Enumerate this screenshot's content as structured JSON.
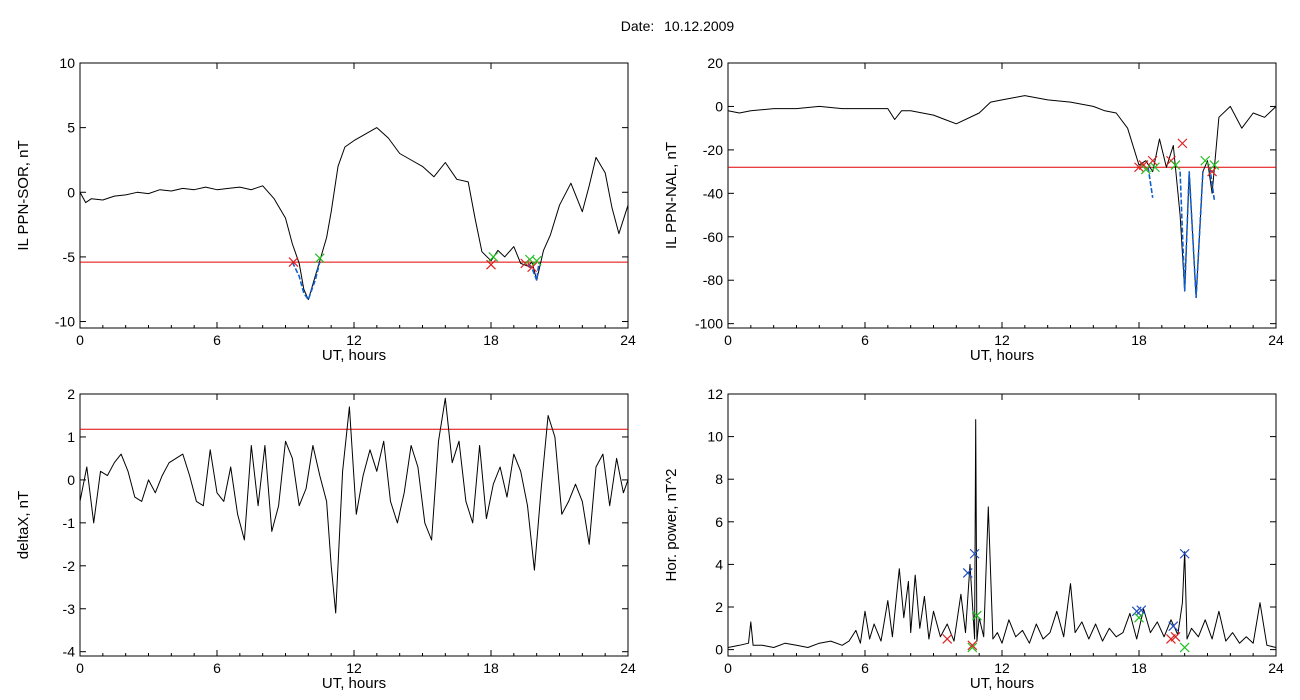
{
  "header": {
    "date_label": "Date:",
    "date_value": "10.12.2009"
  },
  "chart_data": [
    {
      "id": "sor",
      "type": "line",
      "ylabel": "IL PPN-SOR, nT",
      "xlabel": "UT, hours",
      "xlim": [
        0,
        24
      ],
      "ylim": [
        -10.5,
        10
      ],
      "xticks": [
        0,
        6,
        12,
        18,
        24
      ],
      "yticks": [
        10,
        5,
        0,
        -5,
        -10
      ],
      "threshold": -5.4,
      "colors": {
        "line": "#000000",
        "threshold": "#e00000",
        "highlight": "#1060d0",
        "start_marker": "#e02020",
        "end_marker": "#20c020"
      },
      "series": [
        {
          "x": [
            0,
            0.25,
            0.5,
            1,
            1.5,
            2,
            2.5,
            3,
            3.5,
            4,
            4.5,
            5,
            5.5,
            6,
            6.5,
            7,
            7.5,
            8,
            8.5,
            9,
            9.3,
            9.6,
            9.8,
            10,
            10.3,
            10.5,
            10.8,
            11,
            11.3,
            11.6,
            12,
            12.5,
            13,
            13.5,
            14,
            14.5,
            15,
            15.5,
            16,
            16.5,
            17,
            17.3,
            17.6,
            18,
            18.3,
            18.6,
            19,
            19.3,
            19.6,
            19.8,
            20,
            20.3,
            20.6,
            21,
            21.5,
            22,
            22.3,
            22.6,
            23,
            23.3,
            23.6,
            24
          ],
          "y": [
            0,
            -0.8,
            -0.5,
            -0.6,
            -0.3,
            -0.2,
            0,
            -0.1,
            0.2,
            0.1,
            0.3,
            0.2,
            0.4,
            0.2,
            0.3,
            0.4,
            0.2,
            0.5,
            -0.5,
            -2,
            -4,
            -5.5,
            -7.5,
            -8.3,
            -6.5,
            -5.3,
            -3.5,
            -1.5,
            2,
            3.5,
            4,
            4.5,
            5,
            4.2,
            3,
            2.5,
            2,
            1.2,
            2.3,
            1,
            0.8,
            -2,
            -4.6,
            -5.3,
            -4.5,
            -5,
            -4.2,
            -5.5,
            -5.7,
            -5.4,
            -6.8,
            -4.5,
            -3.3,
            -1,
            0.7,
            -1.5,
            0.5,
            2.7,
            1.5,
            -1.2,
            -3.2,
            -1
          ]
        }
      ],
      "highlight_segments": [
        {
          "x": [
            9.3,
            9.6,
            9.8,
            10,
            10.3,
            10.5
          ],
          "y": [
            -5.4,
            -6.5,
            -7.8,
            -8.3,
            -6.8,
            -5.4
          ]
        },
        {
          "x": [
            19.6,
            19.8,
            20,
            20.1
          ],
          "y": [
            -5.6,
            -5.9,
            -6.8,
            -5.4
          ]
        }
      ],
      "markers_start": [
        {
          "x": 9.35,
          "y": -5.4
        },
        {
          "x": 18.0,
          "y": -5.6
        },
        {
          "x": 19.5,
          "y": -5.5
        },
        {
          "x": 19.8,
          "y": -5.8
        }
      ],
      "markers_end": [
        {
          "x": 10.5,
          "y": -5.1
        },
        {
          "x": 18.1,
          "y": -5.0
        },
        {
          "x": 19.7,
          "y": -5.2
        },
        {
          "x": 20.0,
          "y": -5.3
        }
      ]
    },
    {
      "id": "nal",
      "type": "line",
      "ylabel": "IL PPN-NAL, nT",
      "xlabel": "UT, hours",
      "xlim": [
        0,
        24
      ],
      "ylim": [
        -102,
        20
      ],
      "xticks": [
        0,
        6,
        12,
        18,
        24
      ],
      "yticks": [
        20,
        0,
        -20,
        -40,
        -60,
        -80,
        -100
      ],
      "threshold": -28,
      "colors": {
        "line": "#000000",
        "threshold": "#e00000",
        "highlight": "#1060d0",
        "start_marker": "#e02020",
        "end_marker": "#20c020"
      },
      "series": [
        {
          "x": [
            0,
            0.5,
            1,
            2,
            3,
            4,
            5,
            6,
            7,
            7.3,
            7.6,
            8,
            9,
            9.5,
            10,
            11,
            11.5,
            12,
            12.5,
            13,
            14,
            15,
            16,
            16.5,
            17,
            17.5,
            18,
            18.3,
            18.6,
            18.9,
            19.2,
            19.5,
            19.8,
            20,
            20.2,
            20.5,
            20.8,
            21,
            21.2,
            21.5,
            22,
            22.5,
            23,
            23.5,
            24
          ],
          "y": [
            -2,
            -3,
            -2,
            -1,
            -1,
            0,
            -1,
            -1,
            -1,
            -6,
            -2,
            -2,
            -4,
            -6,
            -8,
            -3,
            2,
            3,
            4,
            5,
            3,
            2,
            0,
            -2,
            -3,
            -10,
            -27,
            -25,
            -30,
            -15,
            -28,
            -18,
            -50,
            -85,
            -30,
            -88,
            -30,
            -25,
            -40,
            -5,
            0,
            -10,
            -3,
            -5,
            0
          ]
        }
      ],
      "highlight_segments": [
        {
          "x": [
            19.8,
            20,
            20.2,
            20.5,
            20.8
          ],
          "y": [
            -30,
            -85,
            -30,
            -88,
            -30
          ]
        },
        {
          "x": [
            18.4,
            18.6
          ],
          "y": [
            -28,
            -42
          ]
        },
        {
          "x": [
            21.1,
            21.3
          ],
          "y": [
            -28,
            -43
          ]
        }
      ],
      "markers_start": [
        {
          "x": 18.0,
          "y": -28
        },
        {
          "x": 18.2,
          "y": -27
        },
        {
          "x": 18.6,
          "y": -25
        },
        {
          "x": 19.4,
          "y": -25
        },
        {
          "x": 19.9,
          "y": -17
        },
        {
          "x": 21.2,
          "y": -30
        }
      ],
      "markers_end": [
        {
          "x": 18.3,
          "y": -29
        },
        {
          "x": 18.7,
          "y": -28
        },
        {
          "x": 19.6,
          "y": -27
        },
        {
          "x": 20.9,
          "y": -25
        },
        {
          "x": 21.3,
          "y": -27
        }
      ]
    },
    {
      "id": "deltax",
      "type": "line",
      "ylabel": "deltaX, nT",
      "xlabel": "UT, hours",
      "xlim": [
        0,
        24
      ],
      "ylim": [
        -4.1,
        2
      ],
      "xticks": [
        0,
        6,
        12,
        18,
        24
      ],
      "yticks": [
        2,
        1,
        0,
        -1,
        -2,
        -3,
        -4
      ],
      "threshold": 1.18,
      "colors": {
        "line": "#000000",
        "threshold": "#e00000"
      },
      "series": [
        {
          "x": [
            0,
            0.3,
            0.6,
            0.9,
            1.2,
            1.5,
            1.8,
            2.1,
            2.4,
            2.7,
            3,
            3.3,
            3.6,
            3.9,
            4.2,
            4.5,
            4.8,
            5.1,
            5.4,
            5.7,
            6,
            6.3,
            6.6,
            6.9,
            7.2,
            7.5,
            7.8,
            8.1,
            8.4,
            8.7,
            9,
            9.3,
            9.6,
            9.9,
            10.2,
            10.5,
            10.8,
            11,
            11.2,
            11.5,
            11.8,
            12.1,
            12.4,
            12.7,
            13,
            13.3,
            13.6,
            13.9,
            14.2,
            14.5,
            14.8,
            15.1,
            15.4,
            15.7,
            16,
            16.3,
            16.6,
            16.9,
            17.2,
            17.5,
            17.8,
            18.1,
            18.4,
            18.7,
            19,
            19.3,
            19.6,
            19.9,
            20.2,
            20.5,
            20.8,
            21.1,
            21.4,
            21.7,
            22,
            22.3,
            22.6,
            22.9,
            23.2,
            23.5,
            23.8,
            24
          ],
          "y": [
            -0.5,
            0.3,
            -1,
            0.2,
            0.1,
            0.4,
            0.6,
            0.2,
            -0.4,
            -0.5,
            0,
            -0.3,
            0.1,
            0.4,
            0.5,
            0.6,
            0.1,
            -0.5,
            -0.6,
            0.7,
            -0.3,
            -0.5,
            0.3,
            -0.8,
            -1.4,
            0.8,
            -0.6,
            0.8,
            -1.2,
            -0.6,
            0.9,
            0.5,
            -0.6,
            -0.2,
            0.8,
            0.1,
            -0.5,
            -2,
            -3.1,
            0.2,
            1.7,
            -0.8,
            0.1,
            0.7,
            0.2,
            0.9,
            -0.5,
            -1,
            -0.3,
            0.8,
            0.3,
            -1,
            -1.4,
            0.9,
            1.9,
            0.4,
            0.9,
            -0.5,
            -1,
            0.8,
            -0.9,
            -0.1,
            0.3,
            -0.4,
            0.6,
            0.2,
            -0.6,
            -2.1,
            -0.2,
            1.5,
            1,
            -0.8,
            -0.5,
            -0.1,
            -0.5,
            -1.5,
            0.3,
            0.6,
            -0.6,
            0.5,
            -0.3,
            0
          ]
        }
      ]
    },
    {
      "id": "power",
      "type": "line",
      "ylabel": "Hor. power, nT^2",
      "xlabel": "UT, hours",
      "xlim": [
        0,
        24
      ],
      "ylim": [
        -0.3,
        12
      ],
      "xticks": [
        0,
        6,
        12,
        18,
        24
      ],
      "yticks": [
        12,
        10,
        8,
        6,
        4,
        2,
        0
      ],
      "colors": {
        "line": "#000000",
        "blue_marker": "#2050c0",
        "green_marker": "#20c020",
        "red_marker": "#e02020"
      },
      "series": [
        {
          "x": [
            0,
            0.5,
            0.9,
            1,
            1.1,
            1.5,
            2,
            2.5,
            3,
            3.5,
            4,
            4.5,
            5,
            5.3,
            5.6,
            5.8,
            6,
            6.2,
            6.4,
            6.7,
            7,
            7.2,
            7.5,
            7.7,
            7.9,
            8,
            8.2,
            8.4,
            8.6,
            8.8,
            9,
            9.3,
            9.6,
            9.9,
            10.2,
            10.4,
            10.6,
            10.8,
            10.85,
            10.9,
            11,
            11.2,
            11.4,
            11.6,
            11.8,
            12,
            12.3,
            12.6,
            12.9,
            13.2,
            13.5,
            13.8,
            14.1,
            14.4,
            14.7,
            15,
            15.2,
            15.5,
            15.8,
            16.1,
            16.4,
            16.7,
            17,
            17.3,
            17.6,
            17.9,
            18.2,
            18.5,
            18.8,
            19.1,
            19.4,
            19.7,
            19.9,
            20,
            20.1,
            20.3,
            20.6,
            20.9,
            21.2,
            21.5,
            21.8,
            22.1,
            22.4,
            22.7,
            23,
            23.3,
            23.6,
            24
          ],
          "y": [
            0.1,
            0.2,
            0.3,
            1.3,
            0.2,
            0.2,
            0.1,
            0.3,
            0.2,
            0.1,
            0.3,
            0.4,
            0.2,
            0.4,
            0.9,
            0.3,
            1.8,
            0.5,
            1.2,
            0.4,
            2.3,
            0.6,
            3.8,
            1.5,
            3.2,
            0.8,
            3.5,
            1,
            2.5,
            0.5,
            1.8,
            0.6,
            1.2,
            0.4,
            2.6,
            0.8,
            4,
            0.5,
            10.8,
            0.4,
            1.5,
            0.6,
            6.7,
            0.5,
            0.8,
            0.3,
            1.4,
            0.6,
            0.9,
            0.3,
            1.2,
            0.5,
            0.8,
            1.8,
            0.6,
            3.1,
            0.8,
            1.3,
            0.5,
            1.2,
            0.4,
            1,
            0.6,
            0.8,
            1.7,
            0.5,
            1.9,
            0.8,
            1.3,
            0.6,
            1.4,
            0.7,
            2.2,
            4.6,
            0.5,
            1,
            0.6,
            1.4,
            0.5,
            1.8,
            0.4,
            0.8,
            0.3,
            0.6,
            0.3,
            2.2,
            0.2,
            0.1
          ]
        }
      ],
      "markers_blue": [
        {
          "x": 10.5,
          "y": 3.6
        },
        {
          "x": 10.8,
          "y": 4.5
        },
        {
          "x": 17.9,
          "y": 1.8
        },
        {
          "x": 18.1,
          "y": 1.85
        },
        {
          "x": 19.5,
          "y": 1.1
        },
        {
          "x": 20.0,
          "y": 4.5
        }
      ],
      "markers_green": [
        {
          "x": 10.7,
          "y": 0.1
        },
        {
          "x": 10.9,
          "y": 1.6
        },
        {
          "x": 18.0,
          "y": 1.5
        },
        {
          "x": 20.0,
          "y": 0.1
        }
      ],
      "markers_red": [
        {
          "x": 9.6,
          "y": 0.5
        },
        {
          "x": 10.7,
          "y": 0.2
        },
        {
          "x": 19.4,
          "y": 0.5
        },
        {
          "x": 19.6,
          "y": 0.6
        }
      ]
    }
  ]
}
